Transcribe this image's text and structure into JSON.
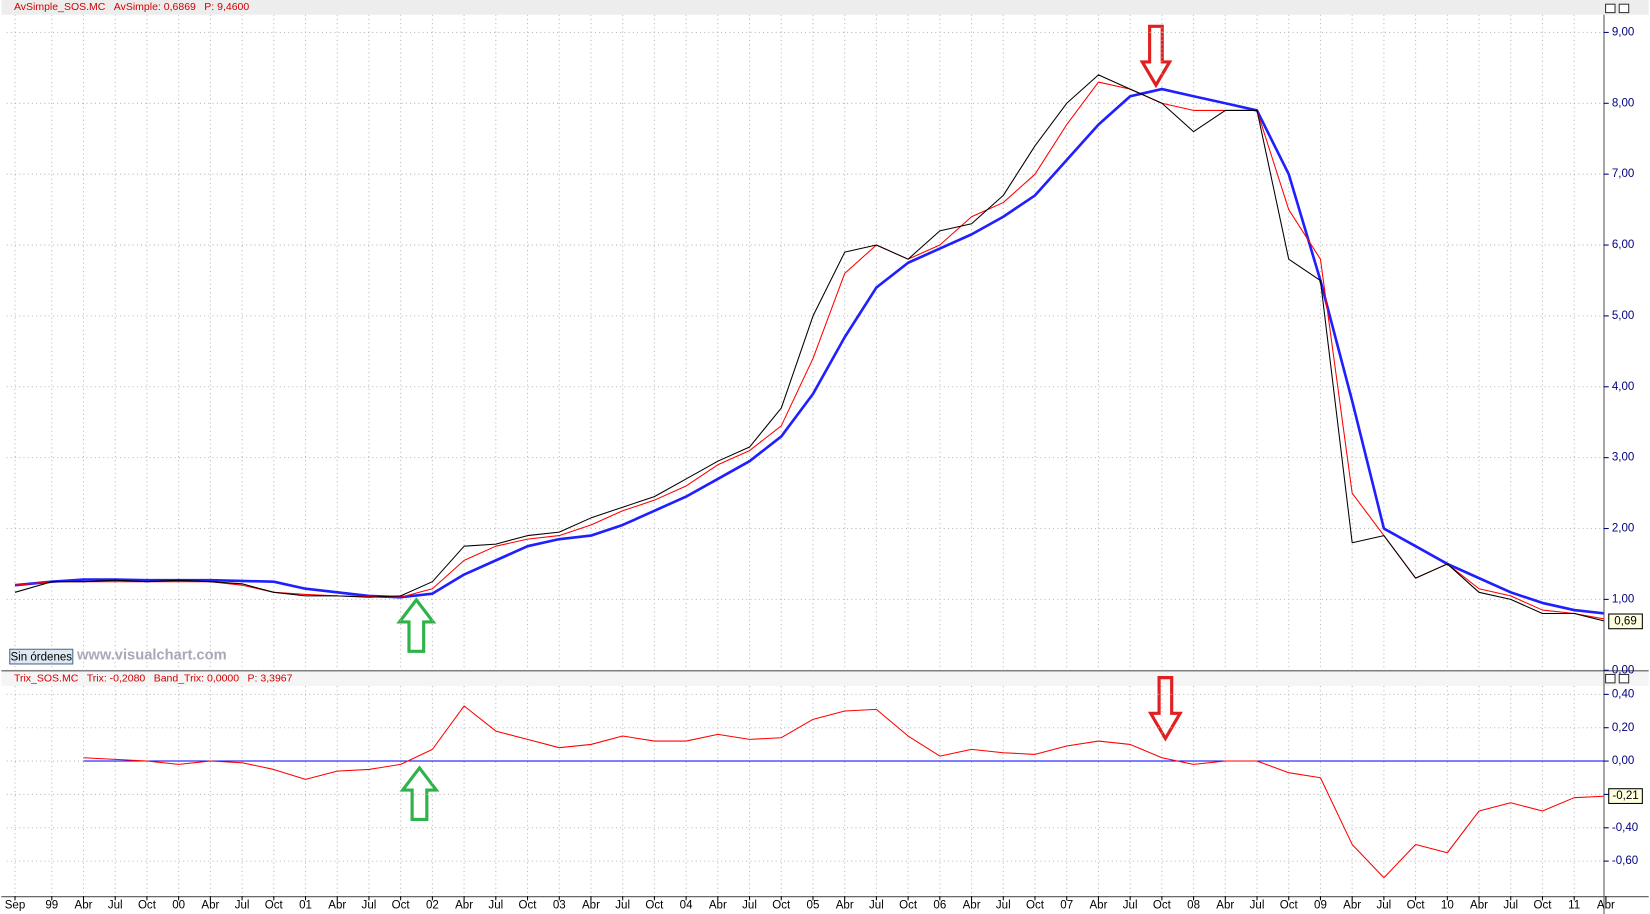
{
  "chart_data": [
    {
      "type": "line",
      "title": "AvSimple_SOS.MC",
      "indicators": [
        "AvSimple: 0,6869",
        "P: 9,4600"
      ],
      "watermark": "www.visualchart.com",
      "button": "Sin órdenes",
      "categories": [
        "Sep",
        "99",
        "Abr",
        "Jul",
        "Oct",
        "00",
        "Abr",
        "Jul",
        "Oct",
        "01",
        "Abr",
        "Jul",
        "Oct",
        "02",
        "Abr",
        "Jul",
        "Oct",
        "03",
        "Abr",
        "Jul",
        "Oct",
        "04",
        "Abr",
        "Jul",
        "Oct",
        "05",
        "Abr",
        "Jul",
        "Oct",
        "06",
        "Abr",
        "Jul",
        "Oct",
        "07",
        "Abr",
        "Jul",
        "Oct",
        "08",
        "Abr",
        "Jul",
        "Oct",
        "09",
        "Abr",
        "Jul",
        "Oct",
        "10",
        "Abr",
        "Jul",
        "Oct",
        "11",
        "Abr"
      ],
      "series": [
        {
          "color": "#000000",
          "values": [
            1.1,
            1.25,
            1.25,
            1.27,
            1.25,
            1.27,
            1.25,
            1.22,
            1.1,
            1.05,
            1.05,
            1.03,
            1.05,
            1.25,
            1.75,
            1.78,
            1.9,
            1.95,
            2.15,
            2.3,
            2.45,
            2.7,
            2.95,
            3.15,
            3.7,
            5.0,
            5.9,
            6.0,
            5.8,
            6.2,
            6.3,
            6.7,
            7.4,
            8.0,
            8.4,
            8.2,
            8.0,
            7.6,
            7.9,
            7.9,
            5.8,
            5.5,
            1.8,
            1.9,
            1.3,
            1.5,
            1.1,
            1.0,
            0.8,
            0.8,
            0.69
          ]
        },
        {
          "color": "#ff0000",
          "values": [
            1.2,
            1.25,
            1.25,
            1.25,
            1.25,
            1.25,
            1.25,
            1.2,
            1.1,
            1.07,
            1.05,
            1.04,
            1.03,
            1.15,
            1.55,
            1.75,
            1.85,
            1.9,
            2.05,
            2.25,
            2.4,
            2.6,
            2.9,
            3.1,
            3.45,
            4.4,
            5.6,
            6.0,
            5.8,
            6.0,
            6.4,
            6.6,
            7.0,
            7.7,
            8.3,
            8.2,
            8.0,
            7.9,
            7.9,
            7.9,
            6.5,
            5.8,
            2.5,
            1.9,
            1.3,
            1.5,
            1.15,
            1.05,
            0.85,
            0.8,
            0.72
          ]
        },
        {
          "color": "#1f1fff",
          "values": [
            1.2,
            1.25,
            1.28,
            1.28,
            1.27,
            1.27,
            1.27,
            1.26,
            1.25,
            1.15,
            1.1,
            1.05,
            1.03,
            1.08,
            1.35,
            1.55,
            1.75,
            1.85,
            1.9,
            2.05,
            2.25,
            2.45,
            2.7,
            2.95,
            3.3,
            3.9,
            4.7,
            5.4,
            5.75,
            5.95,
            6.15,
            6.4,
            6.7,
            7.2,
            7.7,
            8.1,
            8.2,
            8.1,
            8.0,
            7.9,
            7.0,
            5.5,
            3.8,
            2.0,
            1.75,
            1.5,
            1.3,
            1.1,
            0.95,
            0.85,
            0.8
          ]
        }
      ],
      "last_label": {
        "value": 0.69,
        "label": "0,69"
      },
      "ylim": [
        0,
        9.25
      ],
      "yticks": [
        {
          "value": 0,
          "label": "0,00"
        },
        {
          "value": 1,
          "label": "1,00"
        },
        {
          "value": 2,
          "label": "2,00"
        },
        {
          "value": 3,
          "label": "3,00"
        },
        {
          "value": 4,
          "label": "4,00"
        },
        {
          "value": 5,
          "label": "5,00"
        },
        {
          "value": 6,
          "label": "6,00"
        },
        {
          "value": 7,
          "label": "7,00"
        },
        {
          "value": 8,
          "label": "8,00"
        },
        {
          "value": 9,
          "label": "9,00"
        }
      ],
      "grid": true
    },
    {
      "type": "line",
      "title": "Trix_SOS.MC",
      "indicators": [
        "Trix: -0,2080",
        "Band_Trix: 0,0000",
        "P: 3,3967"
      ],
      "categories": [
        "Sep",
        "99",
        "Abr",
        "Jul",
        "Oct",
        "00",
        "Abr",
        "Jul",
        "Oct",
        "01",
        "Abr",
        "Jul",
        "Oct",
        "02",
        "Abr",
        "Jul",
        "Oct",
        "03",
        "Abr",
        "Jul",
        "Oct",
        "04",
        "Abr",
        "Jul",
        "Oct",
        "05",
        "Abr",
        "Jul",
        "Oct",
        "06",
        "Abr",
        "Jul",
        "Oct",
        "07",
        "Abr",
        "Jul",
        "Oct",
        "08",
        "Abr",
        "Jul",
        "Oct",
        "09",
        "Abr",
        "Jul",
        "Oct",
        "10",
        "Abr",
        "Jul",
        "Oct",
        "11",
        "Abr"
      ],
      "series": [
        {
          "color": "#ff0000",
          "values": [
            null,
            null,
            0.02,
            0.01,
            0.0,
            -0.02,
            0.0,
            -0.01,
            -0.05,
            -0.11,
            -0.06,
            -0.05,
            -0.02,
            0.07,
            0.33,
            0.18,
            0.13,
            0.08,
            0.1,
            0.15,
            0.12,
            0.12,
            0.16,
            0.13,
            0.14,
            0.25,
            0.3,
            0.31,
            0.15,
            0.03,
            0.07,
            0.05,
            0.04,
            0.09,
            0.12,
            0.1,
            0.02,
            -0.02,
            0.0,
            0.0,
            -0.07,
            -0.1,
            -0.5,
            -0.7,
            -0.5,
            -0.55,
            -0.3,
            -0.25,
            -0.3,
            -0.22,
            -0.21
          ]
        },
        {
          "color": "#0000ff",
          "values": [
            null,
            null,
            0,
            0,
            0,
            0,
            0,
            0,
            0,
            0,
            0,
            0,
            0,
            0,
            0,
            0,
            0,
            0,
            0,
            0,
            0,
            0,
            0,
            0,
            0,
            0,
            0,
            0,
            0,
            0,
            0,
            0,
            0,
            0,
            0,
            0,
            0,
            0,
            0,
            0,
            0,
            0,
            0,
            0,
            0,
            0,
            0,
            0,
            0,
            0,
            0
          ]
        }
      ],
      "last_label": {
        "value": -0.21,
        "label": "-0,21"
      },
      "ylim": [
        -0.81,
        0.45
      ],
      "yticks": [
        {
          "value": 0.4,
          "label": "0,40"
        },
        {
          "value": 0.2,
          "label": "0,20"
        },
        {
          "value": 0,
          "label": "0,00"
        },
        {
          "value": -0.2,
          "label": "-0,20"
        },
        {
          "value": -0.4,
          "label": "-0,40"
        },
        {
          "value": -0.6,
          "label": "-0,60"
        }
      ],
      "grid": true
    }
  ]
}
